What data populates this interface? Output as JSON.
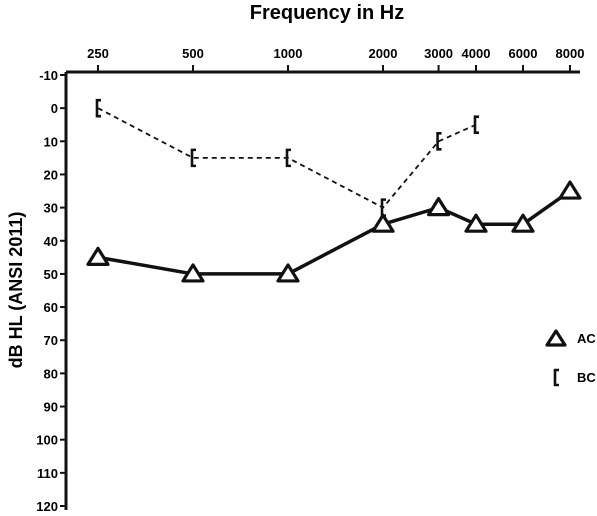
{
  "chart_data": {
    "type": "line",
    "title": "Frequency in Hz",
    "xlabel": "Frequency in Hz",
    "ylabel": "dB HL (ANSI 2011)",
    "x_scale": "log",
    "x_ticks": [
      "250",
      "500",
      "1000",
      "2000",
      "3000",
      "4000",
      "6000",
      "8000"
    ],
    "y_ticks": [
      "-10",
      "0",
      "10",
      "20",
      "30",
      "40",
      "50",
      "60",
      "70",
      "80",
      "90",
      "100",
      "110",
      "120"
    ],
    "ylim": [
      -10,
      120
    ],
    "y_inverted": true,
    "grid": false,
    "legend_position": "right",
    "series": [
      {
        "name": "AC",
        "marker": "triangle",
        "line_style": "solid",
        "x": [
          250,
          500,
          1000,
          2000,
          3000,
          4000,
          6000,
          8000
        ],
        "y": [
          45,
          50,
          50,
          35,
          30,
          35,
          35,
          25
        ]
      },
      {
        "name": "BC",
        "marker": "bracket",
        "line_style": "dashed",
        "x": [
          250,
          500,
          1000,
          2000,
          3000,
          4000
        ],
        "y": [
          0,
          15,
          15,
          30,
          10,
          5
        ]
      }
    ],
    "colors": {
      "ink": "#111111",
      "background": "#ffffff"
    }
  }
}
